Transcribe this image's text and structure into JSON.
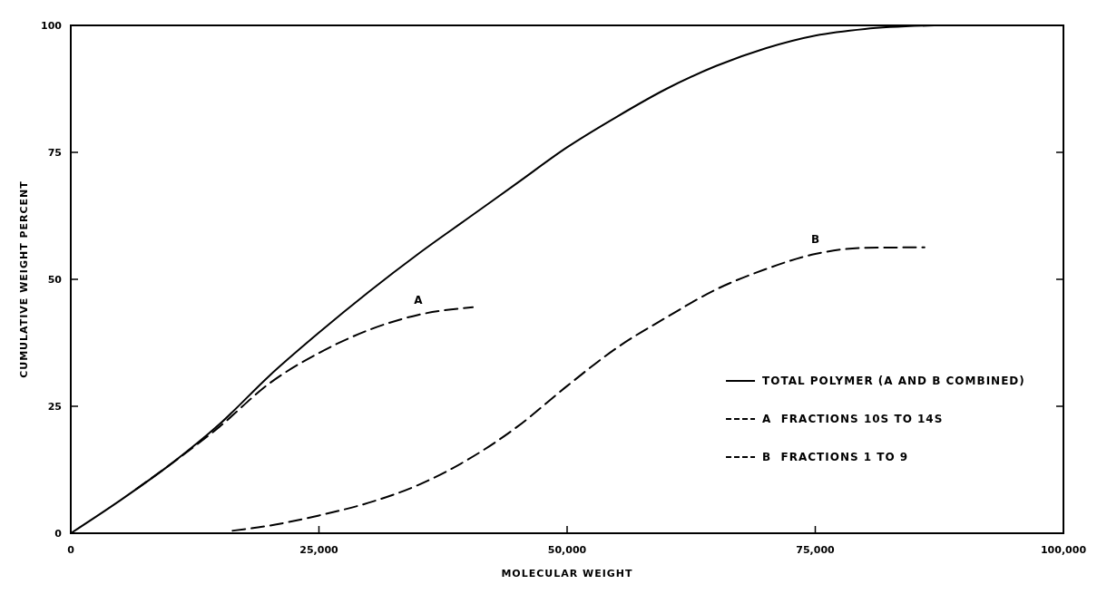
{
  "chart_data": {
    "type": "line",
    "xlabel": "MOLECULAR WEIGHT",
    "ylabel": "CUMULATIVE WEIGHT PERCENT",
    "xlim": [
      0,
      100000
    ],
    "ylim": [
      0,
      100
    ],
    "xticks": [
      0,
      {
        "value": 25000,
        "label": "25,000"
      },
      {
        "value": 50000,
        "label": "50,000"
      },
      {
        "value": 75000,
        "label": "75,000"
      },
      {
        "value": 100000,
        "label": "100,000"
      }
    ],
    "yticks": [
      0,
      25,
      50,
      75,
      100
    ],
    "grid": false,
    "legend": "bottom right",
    "series": [
      {
        "name": "TOTAL POLYMER (A AND B COMBINED)",
        "color": "#000000",
        "line_style": "solid",
        "x": [
          0,
          5000,
          10000,
          15000,
          20000,
          25000,
          30000,
          35000,
          40000,
          45000,
          50000,
          55000,
          60000,
          65000,
          70000,
          75000,
          80000,
          87000
        ],
        "values": [
          0,
          6.5,
          13.5,
          21.5,
          31,
          39.5,
          47.5,
          55,
          62,
          69,
          76,
          82,
          87.5,
          92,
          95.5,
          98,
          99.3,
          100
        ]
      },
      {
        "name": "A  FRACTIONS 10S TO 14S",
        "color": "#000000",
        "line_style": "dashed",
        "x": [
          6600,
          10000,
          15000,
          20000,
          25000,
          30000,
          35000,
          40500
        ],
        "values": [
          8.7,
          13.5,
          21,
          29.5,
          35.5,
          40,
          43,
          44.5
        ]
      },
      {
        "name": "B  FRACTIONS 1 TO 9",
        "color": "#000000",
        "line_style": "dashed",
        "x": [
          16300,
          20000,
          25000,
          30000,
          35000,
          40000,
          45000,
          50000,
          55000,
          60000,
          65000,
          70000,
          75000,
          80000,
          86000
        ],
        "values": [
          0.5,
          1.5,
          3.5,
          6,
          9.5,
          14.5,
          21,
          29,
          36.5,
          42.5,
          48,
          52,
          55,
          56.2,
          56.3
        ]
      }
    ],
    "annotations": [
      {
        "text": "A",
        "x": 35000,
        "y": 43
      },
      {
        "text": "B",
        "x": 75000,
        "y": 55
      }
    ]
  }
}
